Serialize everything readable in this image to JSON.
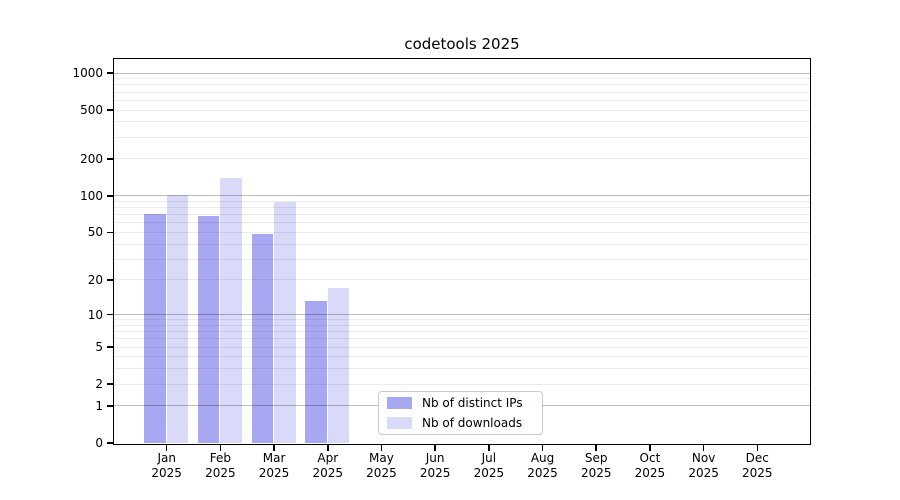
{
  "title": "codetools 2025",
  "legend": {
    "items": [
      {
        "label": "Nb of distinct IPs",
        "color": "#a8a8f2"
      },
      {
        "label": "Nb of downloads",
        "color": "#d9d9fa"
      }
    ]
  },
  "chart_data": {
    "type": "bar",
    "title": "codetools 2025",
    "xlabel": "",
    "ylabel": "",
    "categories": [
      "Jan",
      "Feb",
      "Mar",
      "Apr",
      "May",
      "Jun",
      "Jul",
      "Aug",
      "Sep",
      "Oct",
      "Nov",
      "Dec"
    ],
    "category_year": "2025",
    "series": [
      {
        "name": "Nb of distinct IPs",
        "color": "#a8a8f2",
        "values": [
          70,
          68,
          48,
          13,
          0,
          0,
          0,
          0,
          0,
          0,
          0,
          0
        ]
      },
      {
        "name": "Nb of downloads",
        "color": "#d9d9fa",
        "values": [
          100,
          139,
          88,
          17,
          0,
          0,
          0,
          0,
          0,
          0,
          0,
          0
        ]
      }
    ],
    "y_scale": "log1p",
    "y_tick_labels": [
      "0",
      "1",
      "2",
      "5",
      "10",
      "20",
      "50",
      "100",
      "200",
      "500",
      "1000"
    ],
    "y_tick_values": [
      0,
      1,
      2,
      5,
      10,
      20,
      50,
      100,
      200,
      500,
      1000
    ],
    "y_major_gridlines": [
      1,
      10,
      100,
      1000
    ],
    "y_minor_gridlines": [
      2,
      3,
      4,
      5,
      6,
      7,
      8,
      9,
      20,
      30,
      40,
      50,
      60,
      70,
      80,
      90,
      200,
      300,
      400,
      500,
      600,
      700,
      800,
      900
    ],
    "ylim": [
      0,
      1272
    ],
    "grid": true,
    "legend_position": "lower center"
  }
}
